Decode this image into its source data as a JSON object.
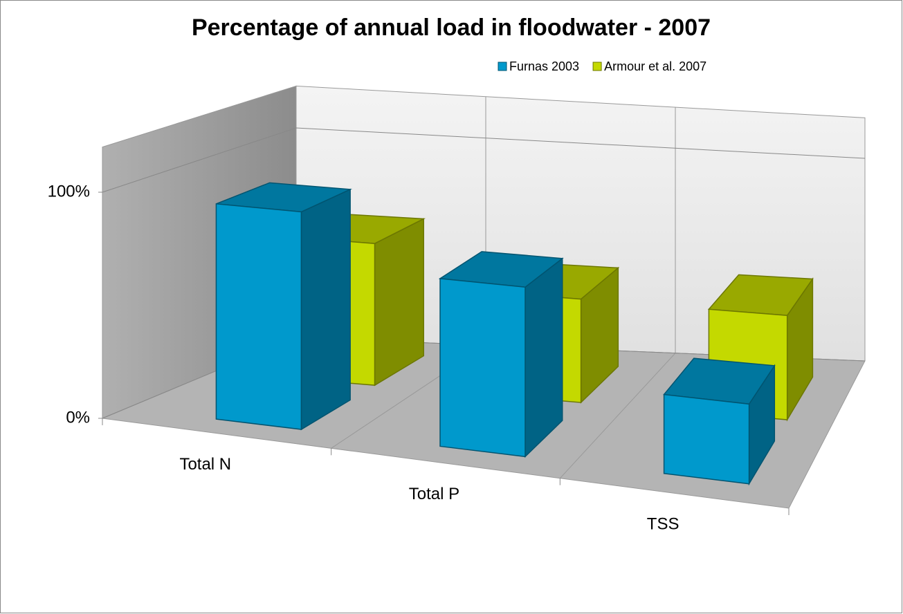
{
  "chart_data": {
    "type": "bar3d",
    "title": "Percentage of annual load in floodwater - 2007",
    "categories": [
      "Total N",
      "Total P",
      "TSS"
    ],
    "series": [
      {
        "name": "Furnas 2003",
        "color": "#0099cc",
        "values": [
          95,
          72,
          33
        ]
      },
      {
        "name": "Armour et al. 2007",
        "color": "#c4d900",
        "values": [
          65,
          47,
          47
        ]
      }
    ],
    "ylim": [
      0,
      120
    ],
    "yticks": [
      {
        "value": 0,
        "label": "0%"
      },
      {
        "value": 100,
        "label": "100%"
      }
    ],
    "grid": true,
    "legend": "top-right"
  }
}
